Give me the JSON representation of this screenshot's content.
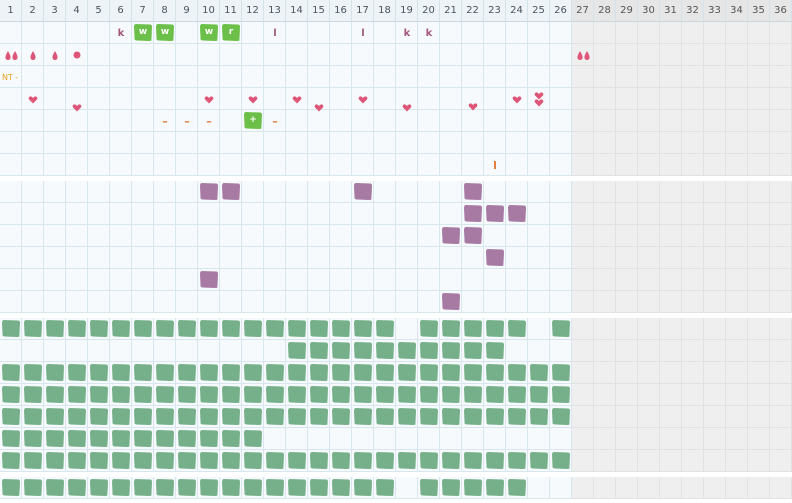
{
  "colors": {
    "accent_green": "#6cc049",
    "sage": "#76b08a",
    "purple": "#a77aa3",
    "heart": "#dd5677",
    "orange": "#e07a3c",
    "letter": "#a2577c",
    "nt": "#e0a020"
  },
  "columns": [
    "1",
    "2",
    "3",
    "4",
    "5",
    "6",
    "7",
    "8",
    "9",
    "10",
    "11",
    "12",
    "13",
    "14",
    "15",
    "16",
    "17",
    "18",
    "19",
    "20",
    "21",
    "22",
    "23",
    "24",
    "25",
    "26",
    "27",
    "28",
    "29",
    "30",
    "31",
    "32",
    "33",
    "34",
    "35",
    "36"
  ],
  "active_columns": 26,
  "sections": [
    {
      "name": "symbols",
      "rows": 7
    },
    {
      "name": "purple",
      "rows": 6
    },
    {
      "name": "sage",
      "rows": 7
    },
    {
      "name": "footer",
      "rows": 1
    }
  ],
  "symbol_items": [
    {
      "col": 6,
      "row": 0,
      "kind": "text",
      "text": "k"
    },
    {
      "col": 7,
      "row": 0,
      "kind": "green",
      "text": "w"
    },
    {
      "col": 8,
      "row": 0,
      "kind": "green",
      "text": "w"
    },
    {
      "col": 10,
      "row": 0,
      "kind": "green",
      "text": "w"
    },
    {
      "col": 11,
      "row": 0,
      "kind": "green",
      "text": "r"
    },
    {
      "col": 13,
      "row": 0,
      "kind": "text",
      "text": "l"
    },
    {
      "col": 17,
      "row": 0,
      "kind": "text",
      "text": "l"
    },
    {
      "col": 19,
      "row": 0,
      "kind": "text",
      "text": "k"
    },
    {
      "col": 20,
      "row": 0,
      "kind": "text",
      "text": "k"
    },
    {
      "col": 1,
      "row": 1,
      "kind": "drops2"
    },
    {
      "col": 2,
      "row": 1,
      "kind": "drop"
    },
    {
      "col": 3,
      "row": 1,
      "kind": "drop"
    },
    {
      "col": 4,
      "row": 1,
      "kind": "dot"
    },
    {
      "col": 27,
      "row": 1,
      "kind": "drops2"
    },
    {
      "col": 2,
      "row": 3,
      "kind": "heart"
    },
    {
      "col": 4,
      "row": 3,
      "kind": "heart",
      "offset": 8
    },
    {
      "col": 10,
      "row": 3,
      "kind": "heart"
    },
    {
      "col": 12,
      "row": 3,
      "kind": "heart"
    },
    {
      "col": 14,
      "row": 3,
      "kind": "heart"
    },
    {
      "col": 15,
      "row": 3,
      "kind": "heart",
      "offset": 8
    },
    {
      "col": 17,
      "row": 3,
      "kind": "heart"
    },
    {
      "col": 19,
      "row": 3,
      "kind": "heart",
      "offset": 8
    },
    {
      "col": 22,
      "row": 3,
      "kind": "heart",
      "offset": 7
    },
    {
      "col": 24,
      "row": 3,
      "kind": "heart"
    },
    {
      "col": 25,
      "row": 3,
      "kind": "heart2"
    },
    {
      "col": 8,
      "row": 4,
      "kind": "orange",
      "text": "–"
    },
    {
      "col": 9,
      "row": 4,
      "kind": "orange",
      "text": "–"
    },
    {
      "col": 10,
      "row": 4,
      "kind": "orange",
      "text": "–"
    },
    {
      "col": 12,
      "row": 4,
      "kind": "green",
      "text": "+"
    },
    {
      "col": 13,
      "row": 4,
      "kind": "orange",
      "text": "–"
    },
    {
      "col": 23,
      "row": 6,
      "kind": "orange",
      "text": "l"
    }
  ],
  "nt_label": "NT -",
  "purple_cells": [
    [
      10,
      0
    ],
    [
      11,
      0
    ],
    [
      17,
      0
    ],
    [
      22,
      0
    ],
    [
      22,
      1
    ],
    [
      23,
      1
    ],
    [
      24,
      1
    ],
    [
      21,
      2
    ],
    [
      22,
      2
    ],
    [
      23,
      3
    ],
    [
      10,
      4
    ],
    [
      21,
      5
    ]
  ],
  "sage_rows": [
    [
      [
        1,
        18
      ],
      [
        20,
        24
      ],
      [
        26,
        26
      ]
    ],
    [
      [
        14,
        23
      ]
    ],
    [
      [
        1,
        26
      ]
    ],
    [
      [
        1,
        26
      ]
    ],
    [
      [
        1,
        26
      ]
    ],
    [
      [
        1,
        12
      ]
    ],
    [
      [
        1,
        26
      ]
    ]
  ],
  "footer_row": [
    [
      1,
      18
    ],
    [
      20,
      24
    ]
  ]
}
